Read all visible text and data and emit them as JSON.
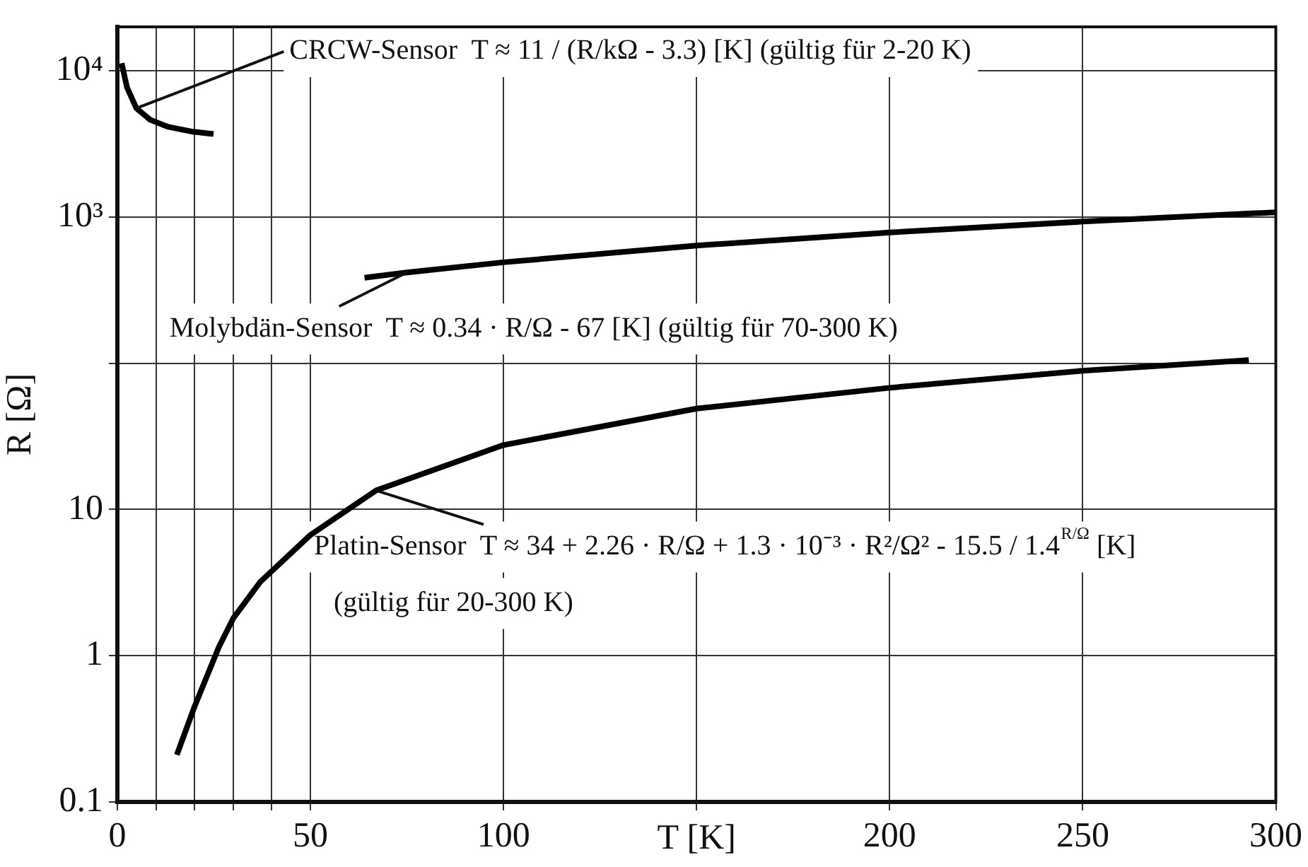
{
  "chart_data": {
    "type": "line",
    "xlabel": "T [K]",
    "ylabel": "R [Ω]",
    "xlim": [
      0,
      300
    ],
    "ylim": [
      0.1,
      20000
    ],
    "log": "y",
    "xticks": [
      0,
      {
        "value": 10,
        "label": null
      },
      {
        "value": 20,
        "label": null
      },
      {
        "value": 30,
        "label": null
      },
      {
        "value": 40,
        "label": null
      },
      50,
      100,
      {
        "value": 150,
        "label": null
      },
      200,
      250,
      300
    ],
    "yticks": [
      0.1,
      1,
      10,
      {
        "value": 100,
        "label": null
      },
      {
        "value": 1000,
        "label": "10³"
      },
      {
        "value": 10000,
        "label": "10⁴"
      }
    ],
    "grid": true,
    "marker": "none",
    "line_style": "solid",
    "series": [
      {
        "color": "#000000",
        "x": [
          1.1,
          2.5,
          4.9,
          8.5,
          13.2,
          19.2,
          24.9
        ],
        "values": [
          11300,
          7700,
          5560,
          4630,
          4140,
          3850,
          3700
        ]
      },
      {
        "color": "#000000",
        "x": [
          64,
          75,
          100,
          150,
          200,
          250,
          300
        ],
        "values": [
          385,
          418,
          491,
          638,
          785,
          932,
          1079
        ]
      },
      {
        "color": "#000000",
        "x": [
          15.4,
          20,
          26.3,
          30,
          37,
          50,
          67,
          100,
          150,
          200,
          250,
          293
        ],
        "values": [
          0.21,
          0.45,
          1.15,
          1.8,
          3.2,
          6.7,
          13.5,
          27.6,
          49,
          68,
          89,
          105
        ]
      }
    ],
    "annotations": [
      {
        "text": "CRCW-Sensor  T ≈ 11 / (R/kΩ - 3.3) [K] (gültig für 2-20 K)",
        "x": 5,
        "y": 5560
      },
      {
        "text": "Molybdän-Sensor  T ≈ 0.34 · R/Ω - 67 [K] (gültig für 70-300 K)",
        "x": 75,
        "y": 418
      },
      {
        "text": "Platin-Sensor  T ≈ 34 + 2.26 · R/Ω + 1.3 · 10⁻³ · R²/Ω² - 15.5 / 1.4$^{R/Ω}$ [K]",
        "x": 67,
        "y": 13.5
      },
      "(gültig für 20-300 K)"
    ]
  }
}
